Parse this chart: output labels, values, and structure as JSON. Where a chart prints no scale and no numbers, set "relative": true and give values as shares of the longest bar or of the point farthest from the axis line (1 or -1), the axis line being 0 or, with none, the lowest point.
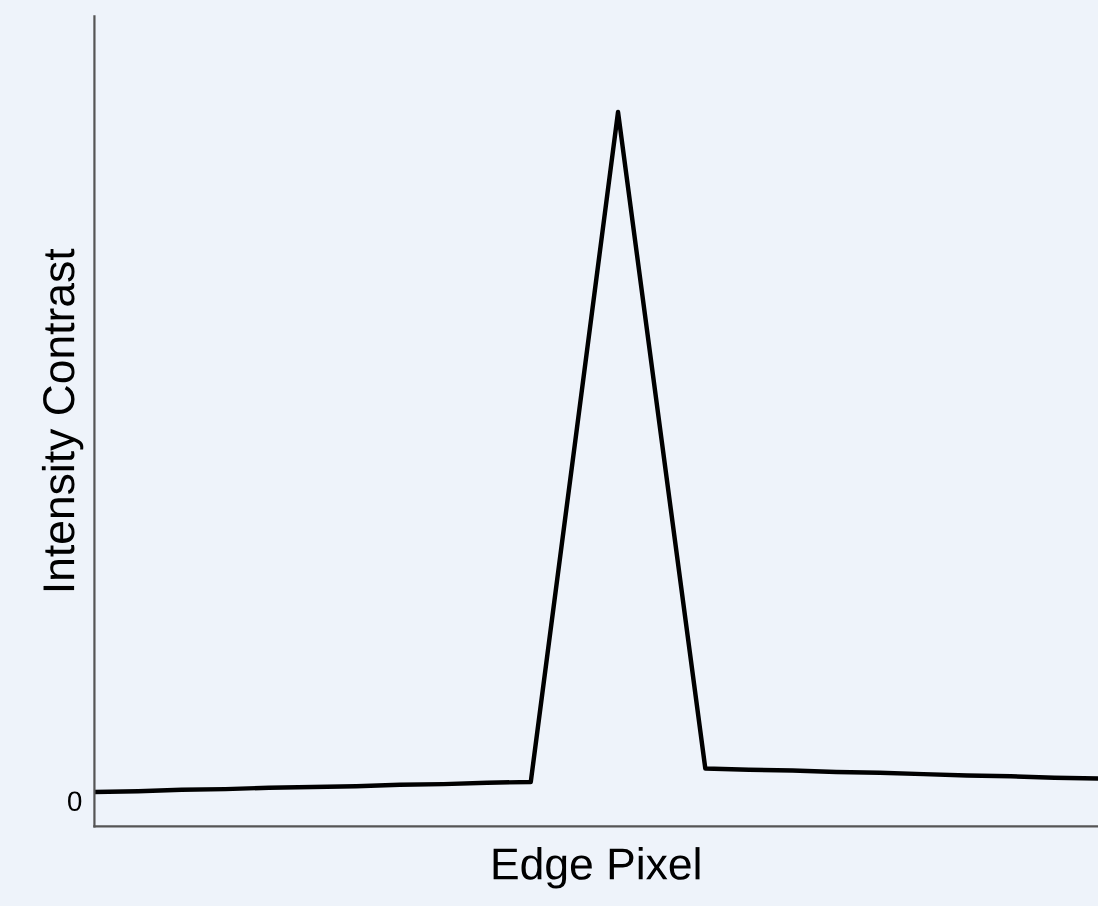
{
  "chart_data": {
    "type": "line",
    "xlabel": "Edge Pixel",
    "ylabel": "Intensity Contrast",
    "relative": true,
    "categories": [
      null,
      null,
      null,
      null,
      null,
      null,
      null,
      null,
      null,
      null,
      null,
      null,
      null,
      null,
      null,
      null,
      null,
      null,
      null,
      null,
      null,
      null,
      null,
      null
    ],
    "annotations": [
      "0"
    ],
    "series": [
      {
        "color": "#000000",
        "values": [
          0.048,
          0.049,
          0.051,
          0.052,
          0.054,
          0.055,
          0.056,
          0.058,
          0.059,
          0.061,
          0.062,
          0.53,
          1,
          0.54,
          0.081,
          0.079,
          0.078,
          0.076,
          0.075,
          0.073,
          0.071,
          0.07,
          0.068,
          0.067
        ]
      }
    ],
    "grid": false,
    "legend": false,
    "marker": "none",
    "line_style": "solid"
  }
}
